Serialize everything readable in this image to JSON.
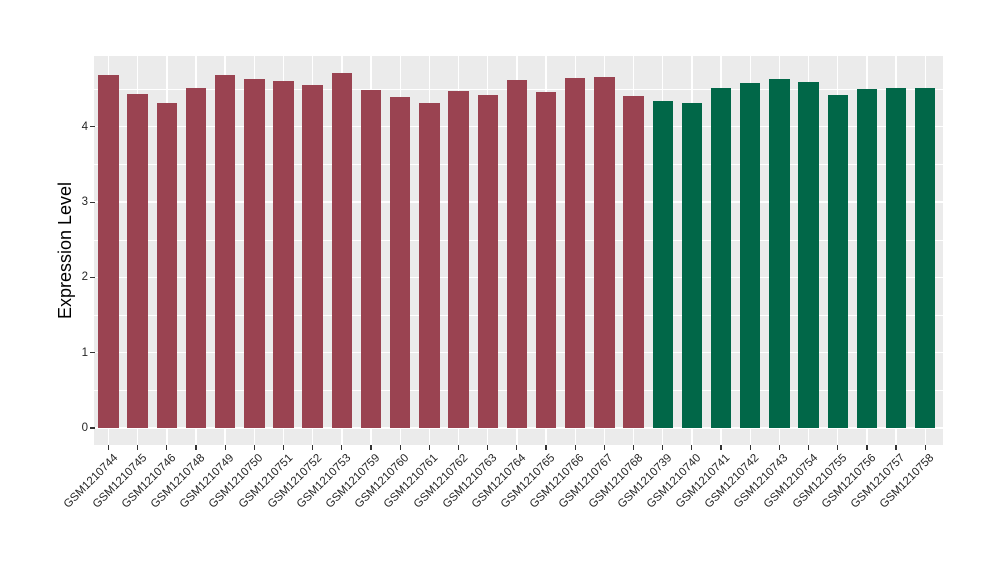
{
  "chart_data": {
    "type": "bar",
    "title": "",
    "xlabel": "",
    "ylabel": "Expression Level",
    "ylim": [
      0,
      4.95
    ],
    "yticks": [
      0,
      1,
      2,
      3,
      4
    ],
    "y_minor_ticks": [
      0.5,
      1.5,
      2.5,
      3.5,
      4.5
    ],
    "grid": "on",
    "legend_position": "none",
    "panel_background": "#EBEBEB",
    "gridline_color": "#FFFFFF",
    "axis_text_color": "#262626",
    "tick_color": "#333333",
    "categories": [
      "GSM1210744",
      "GSM1210745",
      "GSM1210746",
      "GSM1210748",
      "GSM1210749",
      "GSM1210750",
      "GSM1210751",
      "GSM1210752",
      "GSM1210753",
      "GSM1210759",
      "GSM1210760",
      "GSM1210761",
      "GSM1210762",
      "GSM1210763",
      "GSM1210764",
      "GSM1210765",
      "GSM1210766",
      "GSM1210767",
      "GSM1210768",
      "GSM1210739",
      "GSM1210740",
      "GSM1210741",
      "GSM1210742",
      "GSM1210743",
      "GSM1210754",
      "GSM1210755",
      "GSM1210756",
      "GSM1210757",
      "GSM1210758"
    ],
    "values": [
      4.69,
      4.44,
      4.31,
      4.52,
      4.69,
      4.64,
      4.61,
      4.56,
      4.71,
      4.49,
      4.4,
      4.32,
      4.47,
      4.42,
      4.62,
      4.46,
      4.65,
      4.66,
      4.41,
      4.34,
      4.31,
      4.52,
      4.58,
      4.64,
      4.59,
      4.42,
      4.5,
      4.51,
      4.51
    ],
    "groups": [
      {
        "color": "#9A4351",
        "start_index": 0,
        "end_index": 18
      },
      {
        "color": "#016748",
        "start_index": 19,
        "end_index": 28
      }
    ]
  }
}
